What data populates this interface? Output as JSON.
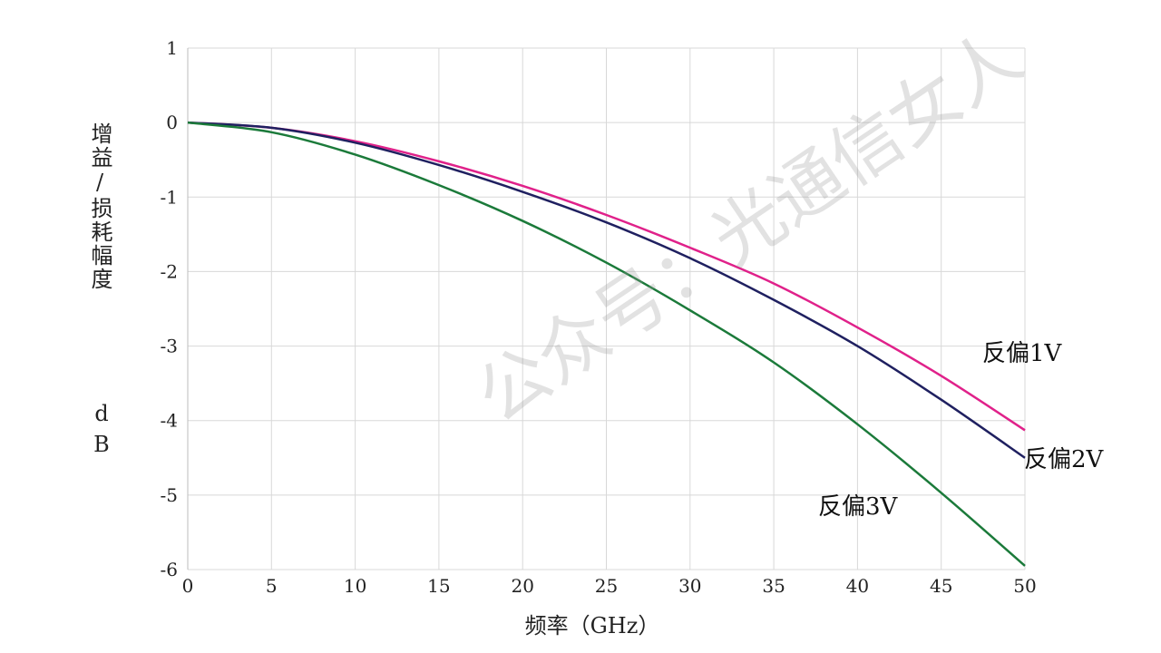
{
  "chart_data": {
    "type": "line",
    "title": "",
    "xlabel": "频率（GHz）",
    "ylabel": "增益/损耗幅度",
    "yunit": "dB",
    "xlim": [
      0,
      50
    ],
    "ylim": [
      -6,
      1
    ],
    "xticks": [
      0,
      5,
      10,
      15,
      20,
      25,
      30,
      35,
      40,
      45,
      50
    ],
    "yticks": [
      1,
      0,
      -1,
      -2,
      -3,
      -4,
      -5,
      -6
    ],
    "grid": true,
    "x": [
      0,
      5,
      10,
      15,
      20,
      25,
      30,
      35,
      40,
      45,
      50
    ],
    "series": [
      {
        "name": "反偏1V",
        "color": "#e0218a",
        "values": [
          0,
          -0.07,
          -0.25,
          -0.52,
          -0.85,
          -1.24,
          -1.68,
          -2.16,
          -2.75,
          -3.4,
          -4.13
        ]
      },
      {
        "name": "反偏2V",
        "color": "#1f2060",
        "values": [
          0,
          -0.07,
          -0.27,
          -0.57,
          -0.93,
          -1.34,
          -1.82,
          -2.38,
          -3.0,
          -3.72,
          -4.5
        ]
      },
      {
        "name": "反偏3V",
        "color": "#1b7a3a",
        "values": [
          0,
          -0.13,
          -0.43,
          -0.84,
          -1.32,
          -1.88,
          -2.52,
          -3.22,
          -4.05,
          -4.97,
          -5.95
        ]
      }
    ]
  },
  "watermark": "公众号：光通信女人"
}
